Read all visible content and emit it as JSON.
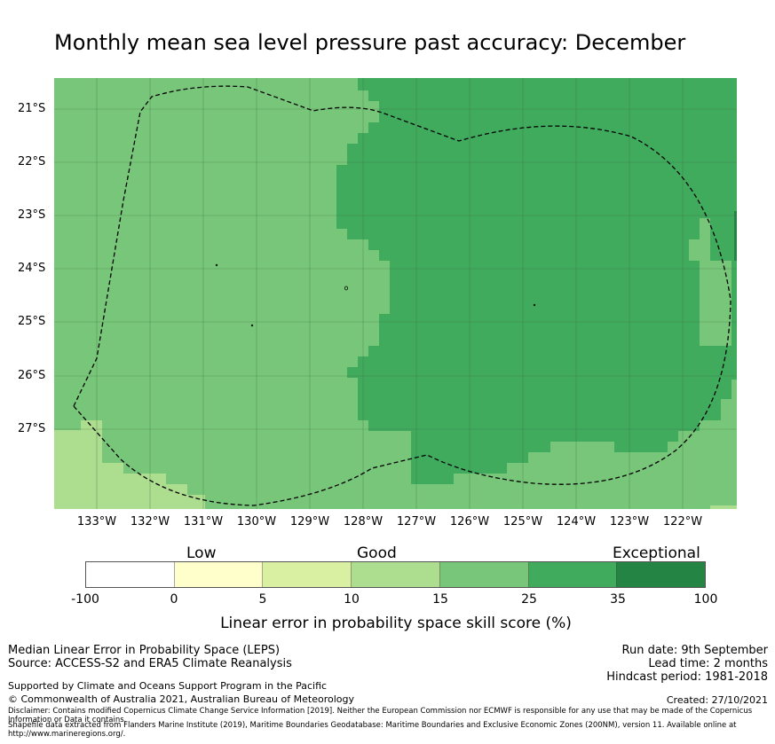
{
  "title": "Monthly mean sea level pressure past accuracy: December",
  "map": {
    "latitude_labels": [
      "21°S",
      "22°S",
      "23°S",
      "24°S",
      "25°S",
      "26°S",
      "27°S"
    ],
    "longitude_labels": [
      "133°W",
      "132°W",
      "131°W",
      "130°W",
      "129°W",
      "128°W",
      "127°W",
      "126°W",
      "125°W",
      "124°W",
      "123°W",
      "122°W"
    ],
    "region_boundary": "EEZ (200NM) dashed outline",
    "colors": {
      "band_10_15": "#addd8e",
      "band_15_25": "#78c679",
      "band_25_35": "#41ab5d",
      "band_35_100": "#238443",
      "boundary": "#000000"
    }
  },
  "colorbar": {
    "category_labels": [
      "Low",
      "Good",
      "Exceptional"
    ],
    "tick_labels": [
      "-100",
      "0",
      "5",
      "10",
      "15",
      "25",
      "35",
      "100"
    ],
    "segment_colors": [
      "#ffffff",
      "#ffffcc",
      "#d9f0a3",
      "#addd8e",
      "#78c679",
      "#41ab5d",
      "#238443"
    ],
    "label": "Linear error in probability space skill score (%)"
  },
  "footer": {
    "line1": "Median Linear Error in Probability Space (LEPS)",
    "line2": "Source: ACCESS-S2 and ERA5 Climate Reanalysis",
    "support": "Supported by Climate and Oceans Support Program in the Pacific",
    "copyright": "© Commonwealth of Australia 2021, Australian Bureau of Meteorology",
    "disclaimer": "Disclaimer: Contains modified Copernicus Climate Change Service Information [2019]. Neither the European Commission nor ECMWF is responsible for any use that may be made of the Copernicus Information or Data it contains.",
    "shapefile": "Shapefile data extracted from Flanders Marine Institute (2019), Maritime Boundaries Geodatabase: Maritime Boundaries and Exclusive Economic Zones (200NM), version 11. Available online at http://www.marineregions.org/.",
    "run_date": "Run date: 9th September",
    "lead_time": "Lead time: 2 months",
    "hindcast": "Hindcast period: 1981-2018",
    "created": "Created: 27/10/2021"
  }
}
